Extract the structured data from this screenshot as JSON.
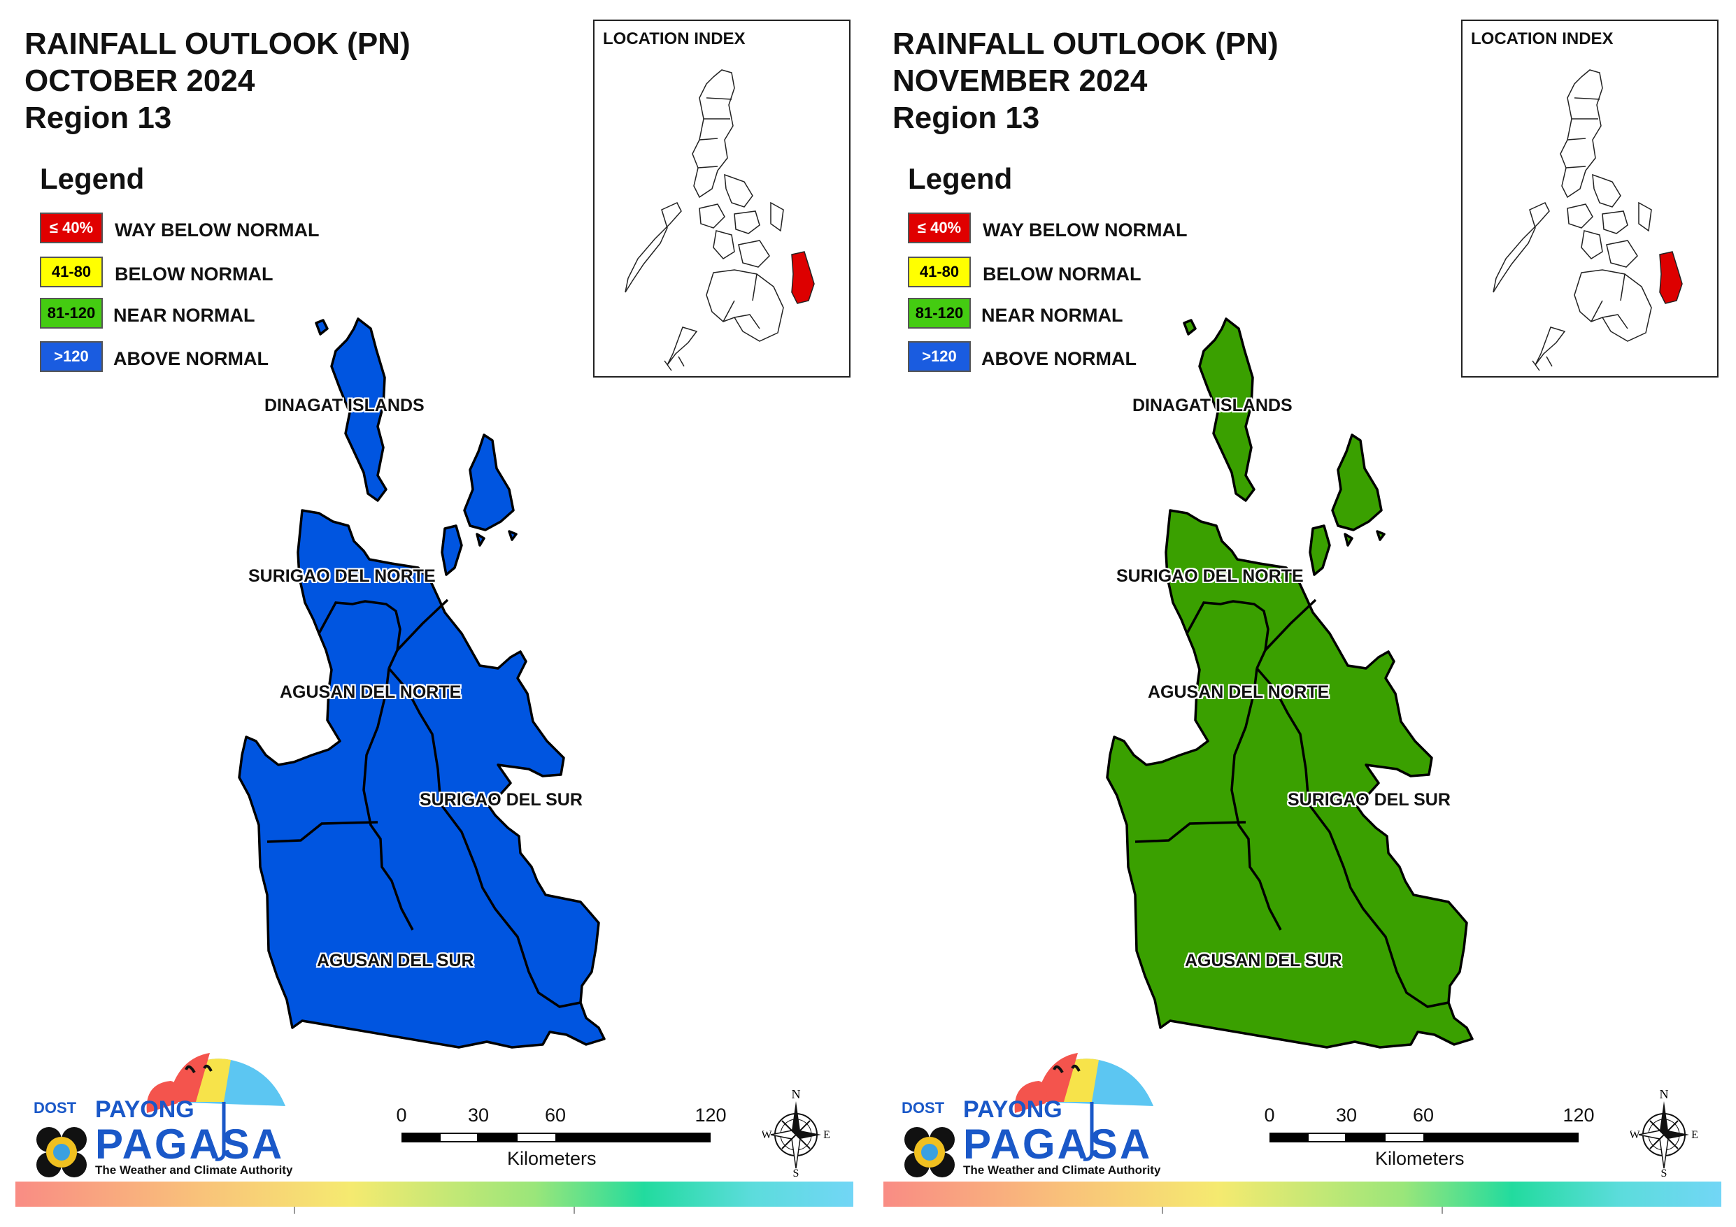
{
  "panels": [
    {
      "title_line1": "RAINFALL OUTLOOK (PN)",
      "title_line2": "OCTOBER 2024",
      "title_line3": "Region 13",
      "region_fill_color": "#0055e0",
      "region_category": "ABOVE NORMAL"
    },
    {
      "title_line1": "RAINFALL OUTLOOK (PN)",
      "title_line2": "NOVEMBER 2024",
      "title_line3": "Region 13",
      "region_fill_color": "#3aa000",
      "region_category": "NEAR NORMAL"
    }
  ],
  "legend": {
    "title": "Legend",
    "items": [
      {
        "range": "≤ 40%",
        "label": "WAY BELOW NORMAL",
        "color": "#e00000",
        "text_color": "#ffffff"
      },
      {
        "range": "41-80",
        "label": "BELOW NORMAL",
        "color": "#ffff00",
        "text_color": "#000000"
      },
      {
        "range": "81-120",
        "label": "NEAR NORMAL",
        "color": "#44cc11",
        "text_color": "#000000"
      },
      {
        "range": ">120",
        "label": "ABOVE NORMAL",
        "color": "#1a5ce0",
        "text_color": "#ffffff"
      }
    ]
  },
  "inset": {
    "title": "LOCATION INDEX",
    "highlight_color": "#dd0000"
  },
  "provinces": {
    "dinagat": "DINAGAT ISLANDS",
    "surigao_norte": "SURIGAO DEL NORTE",
    "agusan_norte": "AGUSAN DEL NORTE",
    "surigao_sur": "SURIGAO DEL SUR",
    "agusan_sur": "AGUSAN DEL SUR"
  },
  "branding": {
    "dost": "DOST",
    "payong": "PAYONG",
    "pagasa": "PAGASA",
    "tagline": "The Weather and Climate Authority"
  },
  "scale": {
    "ticks": [
      "0",
      "30",
      "60",
      "120"
    ],
    "unit": "Kilometers"
  },
  "compass": {
    "n": "N",
    "e": "E",
    "s": "S",
    "w": "W"
  }
}
